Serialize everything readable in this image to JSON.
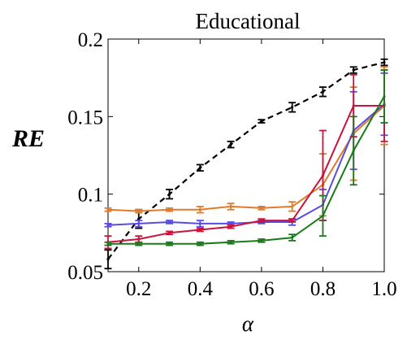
{
  "chart_data": {
    "type": "line",
    "title": "Educational",
    "xlabel": "α",
    "ylabel": "RE",
    "xlim": [
      0.1,
      1.0
    ],
    "ylim": [
      0.05,
      0.2
    ],
    "x": [
      0.1,
      0.2,
      0.3,
      0.4,
      0.5,
      0.6,
      0.7,
      0.8,
      0.9,
      1.0
    ],
    "xticks": [
      "0.2",
      "0.4",
      "0.6",
      "0.8",
      "1.0"
    ],
    "xtick_values": [
      0.2,
      0.4,
      0.6,
      0.8,
      1.0
    ],
    "yticks": [
      "0.05",
      "0.1",
      "0.15",
      "0.2"
    ],
    "ytick_values": [
      0.05,
      0.1,
      0.15,
      0.2
    ],
    "grid": false,
    "legend": "none",
    "series": [
      {
        "color": "#000000",
        "dashed": true,
        "values": [
          0.058,
          0.084,
          0.1,
          0.117,
          0.132,
          0.147,
          0.156,
          0.166,
          0.18,
          0.185
        ],
        "errors": [
          0.006,
          0.006,
          0.003,
          0.002,
          0.002,
          0.001,
          0.003,
          0.003,
          0.002,
          0.002
        ]
      },
      {
        "color": "#e07b2a",
        "values": [
          0.09,
          0.089,
          0.09,
          0.09,
          0.092,
          0.091,
          0.092,
          0.106,
          0.139,
          0.157
        ],
        "errors": [
          0.001,
          0.001,
          0.001,
          0.002,
          0.002,
          0.001,
          0.003,
          0.02,
          0.03,
          0.025
        ]
      },
      {
        "color": "#5a4ce0",
        "values": [
          0.08,
          0.081,
          0.082,
          0.081,
          0.081,
          0.082,
          0.082,
          0.093,
          0.141,
          0.158
        ],
        "errors": [
          0.001,
          0.002,
          0.001,
          0.002,
          0.001,
          0.001,
          0.002,
          0.01,
          0.025,
          0.02
        ]
      },
      {
        "color": "#c8143c",
        "values": [
          0.069,
          0.071,
          0.075,
          0.077,
          0.079,
          0.083,
          0.083,
          0.112,
          0.157,
          0.157
        ],
        "errors": [
          0.004,
          0.002,
          0.001,
          0.001,
          0.001,
          0.001,
          0.001,
          0.029,
          0.02,
          0.023
        ]
      },
      {
        "color": "#1a7a1a",
        "values": [
          0.068,
          0.068,
          0.068,
          0.068,
          0.069,
          0.07,
          0.072,
          0.086,
          0.128,
          0.163
        ],
        "errors": [
          0.001,
          0.001,
          0.001,
          0.001,
          0.001,
          0.001,
          0.002,
          0.013,
          0.022,
          0.017
        ]
      }
    ]
  }
}
